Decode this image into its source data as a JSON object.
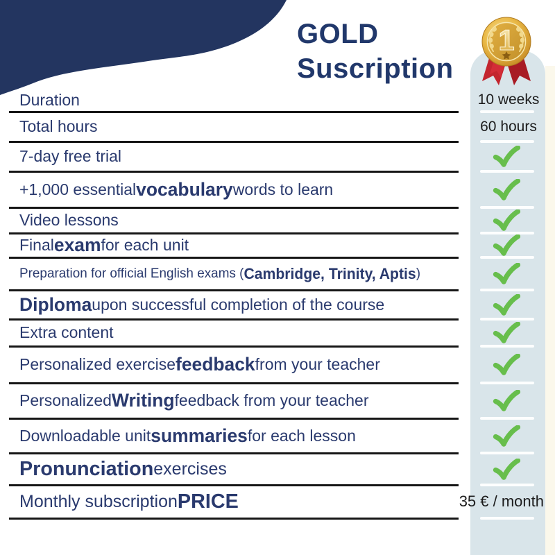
{
  "title": {
    "line1": "GOLD",
    "line2": "Suscription"
  },
  "medal": {
    "label": "1",
    "name": "first place gold medal with red ribbon"
  },
  "colors": {
    "navy_blob": "#233560",
    "title_text": "#21386B",
    "row_text": "#2A3A6E",
    "column_bg": "#D9E5EA",
    "check_green": "#67BE4C",
    "divider_dark": "#161616",
    "divider_light": "#FFFFFF",
    "cream_strip": "#FBF8EB",
    "medal_gold": "#E9B845",
    "ribbon_red": "#C3252E",
    "value_text": "#1C1C1C"
  },
  "rows": [
    {
      "segments": [
        {
          "text": "Duration",
          "bold": false
        }
      ],
      "value": {
        "type": "text",
        "text": "10 weeks"
      }
    },
    {
      "segments": [
        {
          "text": "Total hours",
          "bold": false
        }
      ],
      "value": {
        "type": "text",
        "text": "60 hours"
      }
    },
    {
      "segments": [
        {
          "text": "7-day free trial",
          "bold": false
        }
      ],
      "value": {
        "type": "check"
      }
    },
    {
      "segments": [
        {
          "text": "+1,000 essential ",
          "bold": false
        },
        {
          "text": "vocabulary",
          "bold": true
        },
        {
          "text": " words to learn",
          "bold": false
        }
      ],
      "value": {
        "type": "check"
      }
    },
    {
      "segments": [
        {
          "text": "Video lessons",
          "bold": false
        }
      ],
      "value": {
        "type": "check"
      }
    },
    {
      "segments": [
        {
          "text": "Final ",
          "bold": false
        },
        {
          "text": "exam",
          "bold": true
        },
        {
          "text": " for each unit",
          "bold": false
        }
      ],
      "value": {
        "type": "check"
      }
    },
    {
      "segments": [
        {
          "text": "Preparation for official English exams (",
          "bold": false
        },
        {
          "text": "Cambridge, Trinity, Aptis",
          "bold": true
        },
        {
          "text": ")",
          "bold": false
        }
      ],
      "value": {
        "type": "check"
      }
    },
    {
      "segments": [
        {
          "text": "Diploma",
          "bold": true
        },
        {
          "text": " upon successful completion of the course",
          "bold": false
        }
      ],
      "value": {
        "type": "check"
      }
    },
    {
      "segments": [
        {
          "text": "Extra content",
          "bold": false
        }
      ],
      "value": {
        "type": "check"
      }
    },
    {
      "segments": [
        {
          "text": "Personalized exercise ",
          "bold": false
        },
        {
          "text": "feedback",
          "bold": true
        },
        {
          "text": " from your teacher",
          "bold": false
        }
      ],
      "value": {
        "type": "check"
      }
    },
    {
      "segments": [
        {
          "text": "Personalized ",
          "bold": false
        },
        {
          "text": "Writing",
          "bold": true
        },
        {
          "text": " feedback from your teacher",
          "bold": false
        }
      ],
      "value": {
        "type": "check"
      }
    },
    {
      "segments": [
        {
          "text": "Downloadable unit ",
          "bold": false
        },
        {
          "text": "summaries",
          "bold": true
        },
        {
          "text": " for each lesson",
          "bold": false
        }
      ],
      "value": {
        "type": "check"
      }
    },
    {
      "segments": [
        {
          "text": "Pronunciation",
          "bold": true
        },
        {
          "text": " exercises",
          "bold": false
        }
      ],
      "value": {
        "type": "check"
      }
    },
    {
      "segments": [
        {
          "text": "Monthly subscription ",
          "bold": false
        },
        {
          "text": "PRICE",
          "bold": true
        }
      ],
      "value": {
        "type": "text",
        "text": "35 € / month"
      }
    }
  ]
}
